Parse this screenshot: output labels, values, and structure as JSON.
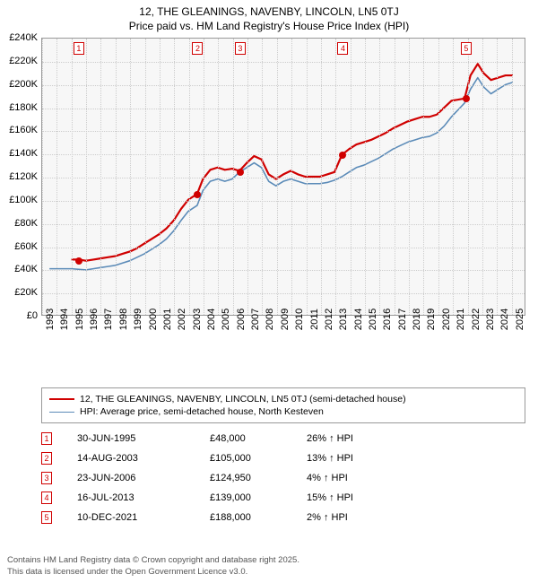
{
  "title_line1": "12, THE GLEANINGS, NAVENBY, LINCOLN, LN5 0TJ",
  "title_line2": "Price paid vs. HM Land Registry's House Price Index (HPI)",
  "chart": {
    "type": "line",
    "background_color": "#f7f7f7",
    "grid_color": "#cccccc",
    "border_color": "#999999",
    "x_years": [
      1993,
      1994,
      1995,
      1996,
      1997,
      1998,
      1999,
      2000,
      2001,
      2002,
      2003,
      2004,
      2005,
      2006,
      2007,
      2008,
      2009,
      2010,
      2011,
      2012,
      2013,
      2014,
      2015,
      2016,
      2017,
      2018,
      2019,
      2020,
      2021,
      2022,
      2023,
      2024,
      2025
    ],
    "xlim": [
      1993,
      2026
    ],
    "y_ticks": [
      0,
      20,
      40,
      60,
      80,
      100,
      120,
      140,
      160,
      180,
      200,
      220,
      240
    ],
    "y_labels": [
      "£0",
      "£20K",
      "£40K",
      "£60K",
      "£80K",
      "£100K",
      "£120K",
      "£140K",
      "£160K",
      "£180K",
      "£200K",
      "£220K",
      "£240K"
    ],
    "ylim": [
      0,
      240
    ],
    "tick_fontsize": 11,
    "series": [
      {
        "name": "property",
        "color": "#d00000",
        "width": 2.2,
        "data": [
          [
            1995.0,
            48
          ],
          [
            1995.5,
            48
          ],
          [
            1996,
            47
          ],
          [
            1996.5,
            48
          ],
          [
            1997,
            49
          ],
          [
            1997.5,
            50
          ],
          [
            1998,
            51
          ],
          [
            1998.5,
            53
          ],
          [
            1999,
            55
          ],
          [
            1999.5,
            58
          ],
          [
            2000,
            62
          ],
          [
            2000.5,
            66
          ],
          [
            2001,
            70
          ],
          [
            2001.5,
            75
          ],
          [
            2002,
            82
          ],
          [
            2002.5,
            92
          ],
          [
            2003,
            100
          ],
          [
            2003.6,
            105
          ],
          [
            2004,
            118
          ],
          [
            2004.5,
            126
          ],
          [
            2005,
            128
          ],
          [
            2005.5,
            126
          ],
          [
            2006,
            127
          ],
          [
            2006.5,
            125
          ],
          [
            2007,
            132
          ],
          [
            2007.5,
            138
          ],
          [
            2008,
            135
          ],
          [
            2008.5,
            122
          ],
          [
            2009,
            118
          ],
          [
            2009.5,
            122
          ],
          [
            2010,
            125
          ],
          [
            2010.5,
            122
          ],
          [
            2011,
            120
          ],
          [
            2011.5,
            120
          ],
          [
            2012,
            120
          ],
          [
            2012.5,
            122
          ],
          [
            2013,
            124
          ],
          [
            2013.5,
            139
          ],
          [
            2014,
            144
          ],
          [
            2014.5,
            148
          ],
          [
            2015,
            150
          ],
          [
            2015.5,
            152
          ],
          [
            2016,
            155
          ],
          [
            2016.5,
            158
          ],
          [
            2017,
            162
          ],
          [
            2017.5,
            165
          ],
          [
            2018,
            168
          ],
          [
            2018.5,
            170
          ],
          [
            2019,
            172
          ],
          [
            2019.5,
            172
          ],
          [
            2020,
            174
          ],
          [
            2020.5,
            180
          ],
          [
            2021,
            186
          ],
          [
            2021.9,
            188
          ],
          [
            2022.3,
            208
          ],
          [
            2022.8,
            218
          ],
          [
            2023.2,
            210
          ],
          [
            2023.7,
            204
          ],
          [
            2024.2,
            206
          ],
          [
            2024.7,
            208
          ],
          [
            2025.2,
            208
          ]
        ]
      },
      {
        "name": "hpi",
        "color": "#5b8bb8",
        "width": 1.6,
        "data": [
          [
            1993.5,
            40
          ],
          [
            1994,
            40
          ],
          [
            1995,
            40
          ],
          [
            1996,
            39
          ],
          [
            1996.5,
            40
          ],
          [
            1997,
            41
          ],
          [
            1997.5,
            42
          ],
          [
            1998,
            43
          ],
          [
            1998.5,
            45
          ],
          [
            1999,
            47
          ],
          [
            1999.5,
            50
          ],
          [
            2000,
            53
          ],
          [
            2000.5,
            57
          ],
          [
            2001,
            61
          ],
          [
            2001.5,
            66
          ],
          [
            2002,
            73
          ],
          [
            2002.5,
            82
          ],
          [
            2003,
            90
          ],
          [
            2003.6,
            95
          ],
          [
            2004,
            108
          ],
          [
            2004.5,
            116
          ],
          [
            2005,
            118
          ],
          [
            2005.5,
            116
          ],
          [
            2006,
            118
          ],
          [
            2006.5,
            124
          ],
          [
            2007,
            128
          ],
          [
            2007.5,
            132
          ],
          [
            2008,
            128
          ],
          [
            2008.5,
            116
          ],
          [
            2009,
            112
          ],
          [
            2009.5,
            116
          ],
          [
            2010,
            118
          ],
          [
            2010.5,
            116
          ],
          [
            2011,
            114
          ],
          [
            2011.5,
            114
          ],
          [
            2012,
            114
          ],
          [
            2012.5,
            115
          ],
          [
            2013,
            117
          ],
          [
            2013.5,
            120
          ],
          [
            2014,
            124
          ],
          [
            2014.5,
            128
          ],
          [
            2015,
            130
          ],
          [
            2015.5,
            133
          ],
          [
            2016,
            136
          ],
          [
            2016.5,
            140
          ],
          [
            2017,
            144
          ],
          [
            2017.5,
            147
          ],
          [
            2018,
            150
          ],
          [
            2018.5,
            152
          ],
          [
            2019,
            154
          ],
          [
            2019.5,
            155
          ],
          [
            2020,
            158
          ],
          [
            2020.5,
            164
          ],
          [
            2021,
            172
          ],
          [
            2021.9,
            184
          ],
          [
            2022.3,
            196
          ],
          [
            2022.8,
            206
          ],
          [
            2023.2,
            198
          ],
          [
            2023.7,
            192
          ],
          [
            2024.2,
            196
          ],
          [
            2024.7,
            200
          ],
          [
            2025.2,
            202
          ]
        ]
      }
    ],
    "sale_markers": [
      {
        "num": "1",
        "year": 1995.5,
        "price": 48
      },
      {
        "num": "2",
        "year": 2003.6,
        "price": 105
      },
      {
        "num": "3",
        "year": 2006.5,
        "price": 125
      },
      {
        "num": "4",
        "year": 2013.5,
        "price": 139
      },
      {
        "num": "5",
        "year": 2021.9,
        "price": 188
      }
    ]
  },
  "legend": {
    "items": [
      {
        "color": "#d00000",
        "width": 2.2,
        "label": "12, THE GLEANINGS, NAVENBY, LINCOLN, LN5 0TJ (semi-detached house)"
      },
      {
        "color": "#5b8bb8",
        "width": 1.6,
        "label": "HPI: Average price, semi-detached house, North Kesteven"
      }
    ]
  },
  "sales": [
    {
      "num": "1",
      "date": "30-JUN-1995",
      "price": "£48,000",
      "delta": "26% ↑ HPI"
    },
    {
      "num": "2",
      "date": "14-AUG-2003",
      "price": "£105,000",
      "delta": "13% ↑ HPI"
    },
    {
      "num": "3",
      "date": "23-JUN-2006",
      "price": "£124,950",
      "delta": "4% ↑ HPI"
    },
    {
      "num": "4",
      "date": "16-JUL-2013",
      "price": "£139,000",
      "delta": "15% ↑ HPI"
    },
    {
      "num": "5",
      "date": "10-DEC-2021",
      "price": "£188,000",
      "delta": "2% ↑ HPI"
    }
  ],
  "footer_line1": "Contains HM Land Registry data © Crown copyright and database right 2025.",
  "footer_line2": "This data is licensed under the Open Government Licence v3.0."
}
